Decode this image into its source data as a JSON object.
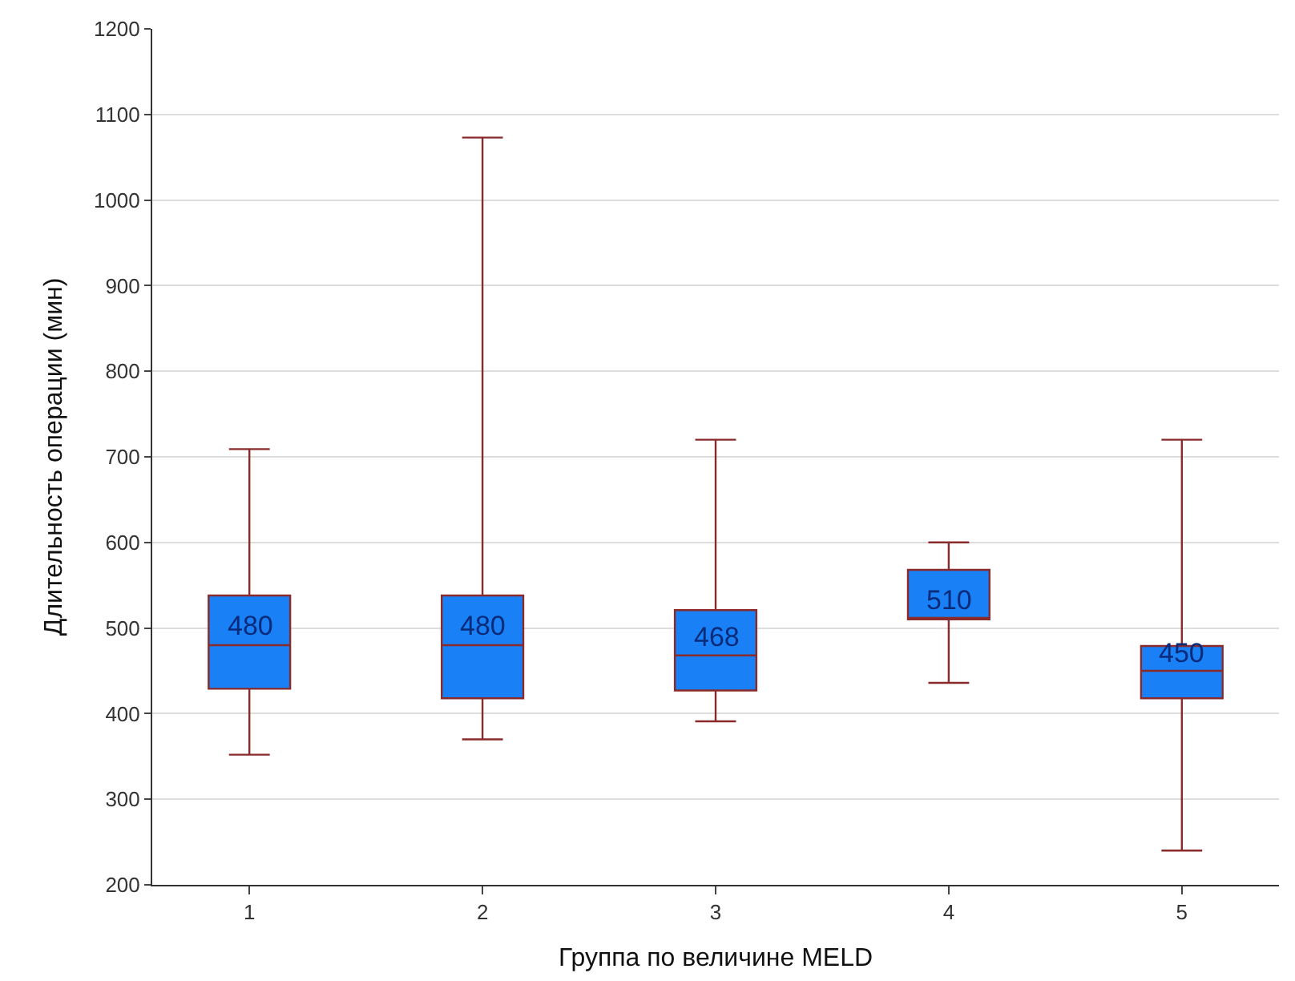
{
  "chart_data": {
    "type": "box",
    "xlabel": "Группа по величине MELD",
    "ylabel": "Длительность операции (мин)",
    "categories": [
      "1",
      "2",
      "3",
      "4",
      "5"
    ],
    "series": [
      {
        "color": "#1a80f5",
        "boxes": [
          {
            "low": 352,
            "q1": 429,
            "median": 480,
            "q3": 538,
            "high": 709
          },
          {
            "low": 370,
            "q1": 418,
            "median": 480,
            "q3": 538,
            "high": 1073
          },
          {
            "low": 391,
            "q1": 427,
            "median": 468,
            "q3": 521,
            "high": 720
          },
          {
            "low": 436,
            "q1": 510,
            "median": 510,
            "q3": 568,
            "high": 600
          },
          {
            "low": 240,
            "q1": 418,
            "median": 450,
            "q3": 479,
            "high": 720
          }
        ],
        "value_labels": [
          "480",
          "480",
          "468",
          "510",
          "450"
        ]
      }
    ],
    "ylim": [
      200,
      1200
    ],
    "yticks": [
      200,
      300,
      400,
      500,
      600,
      700,
      800,
      900,
      1000,
      1100,
      1200
    ],
    "grid": "y"
  }
}
